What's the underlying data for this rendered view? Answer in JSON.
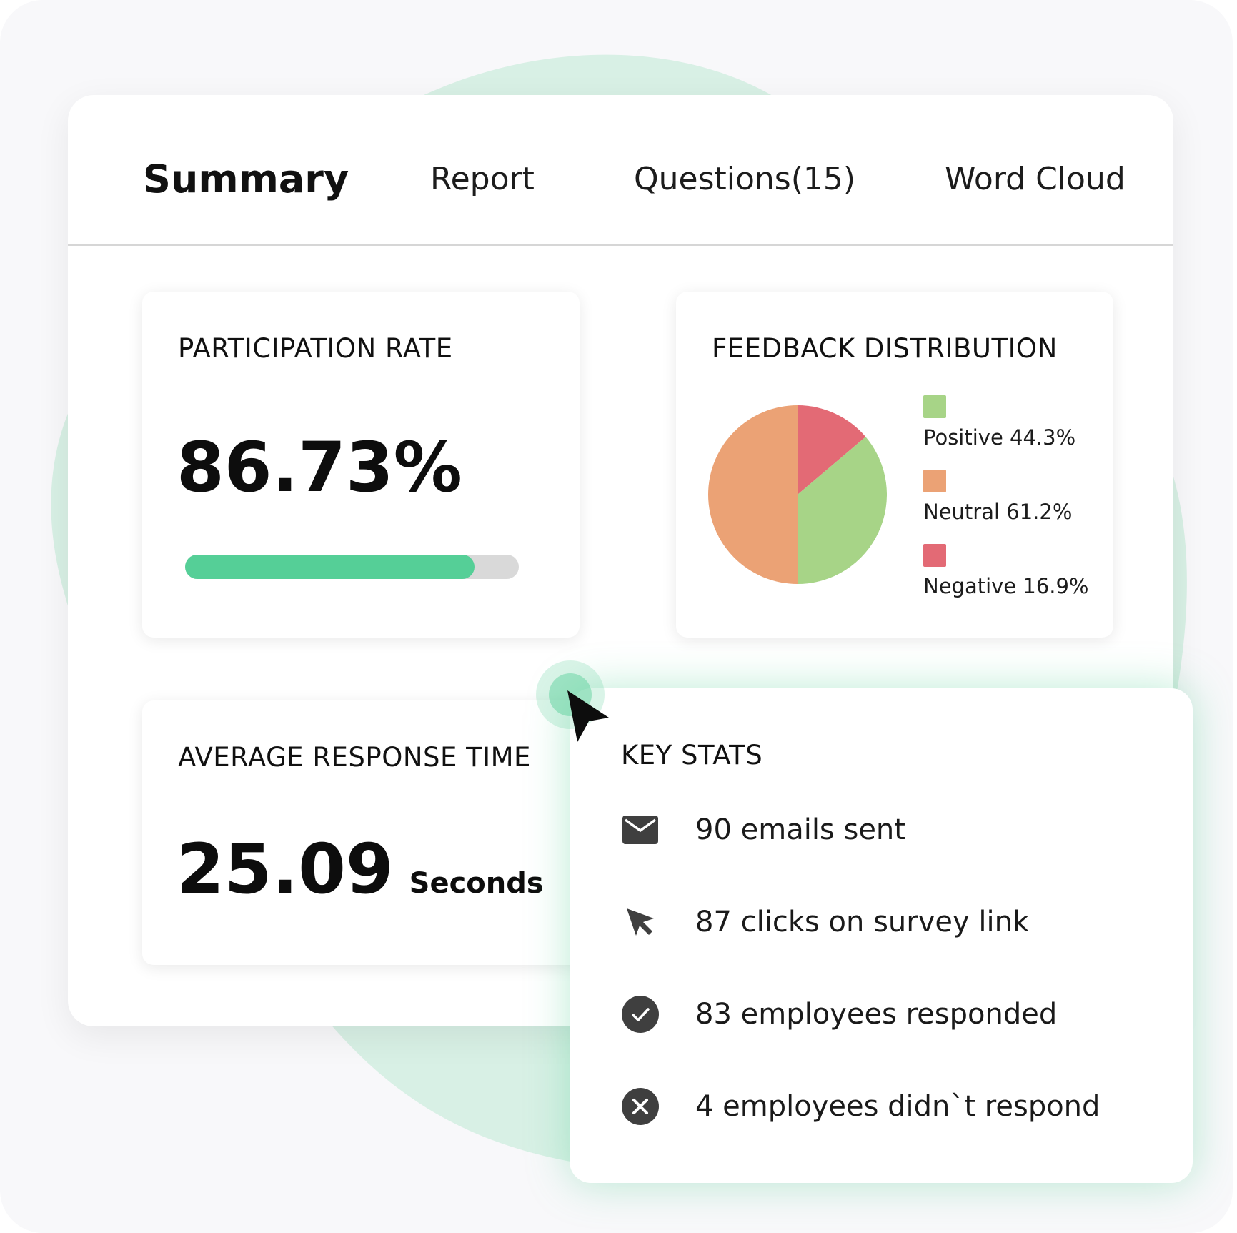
{
  "tabs": [
    {
      "label": "Summary",
      "active": true
    },
    {
      "label": "Report",
      "active": false
    },
    {
      "label": "Questions(15)",
      "active": false
    },
    {
      "label": "Word Cloud",
      "active": false
    }
  ],
  "participation": {
    "title": "PARTICIPATION RATE",
    "value": "86.73%",
    "progress_fraction": 0.8673
  },
  "feedback": {
    "title": "FEEDBACK DISTRIBUTION",
    "legend": [
      {
        "label": "Positive 44.3%",
        "color": "#a7d487"
      },
      {
        "label": "Neutral 61.2%",
        "color": "#eba275"
      },
      {
        "label": "Negative 16.9%",
        "color": "#e36a75"
      }
    ]
  },
  "chart_data": {
    "type": "pie",
    "title": "FEEDBACK DISTRIBUTION",
    "labels": [
      "Positive",
      "Neutral",
      "Negative"
    ],
    "values": [
      44.3,
      61.2,
      16.9
    ],
    "colors": [
      "#a7d487",
      "#eba275",
      "#e36a75"
    ]
  },
  "response_time": {
    "title": "AVERAGE RESPONSE TIME",
    "value": "25.09",
    "unit": "Seconds"
  },
  "key_stats": {
    "title": "KEY STATS",
    "items": [
      {
        "icon": "envelope-icon",
        "text": "90 emails sent"
      },
      {
        "icon": "cursor-click-icon",
        "text": "87 clicks on survey link"
      },
      {
        "icon": "check-circle-icon",
        "text": "83 employees responded"
      },
      {
        "icon": "x-circle-icon",
        "text": "4 employees didn`t respond"
      }
    ]
  },
  "colors": {
    "accent": "#55cf97",
    "track": "#d9d9d9",
    "icon": "#3f3f3f"
  }
}
